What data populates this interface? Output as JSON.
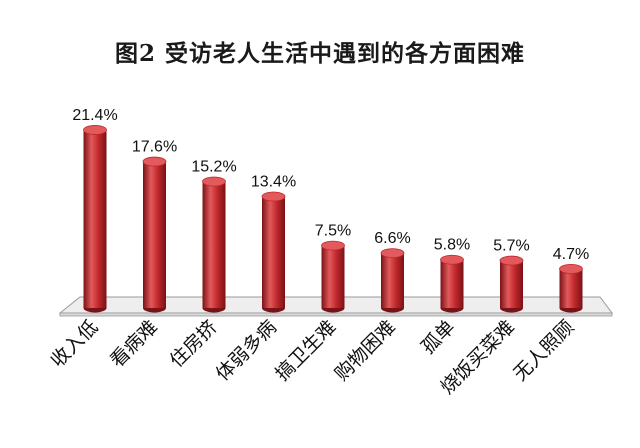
{
  "chart_data": {
    "type": "bar",
    "title": "图2  受访老人生活中遇到的各方面困难",
    "categories": [
      "收入低",
      "看病难",
      "住房挤",
      "体弱多病",
      "搞卫生难",
      "购物困难",
      "孤单",
      "烧饭买菜难",
      "无人照顾"
    ],
    "values": [
      21.4,
      17.6,
      15.2,
      13.4,
      7.5,
      6.6,
      5.8,
      5.7,
      4.7
    ],
    "value_labels": [
      "21.4%",
      "17.6%",
      "15.2%",
      "13.4%",
      "7.5%",
      "6.6%",
      "5.8%",
      "5.7%",
      "4.7%"
    ],
    "xlabel": "",
    "ylabel": "",
    "ylim": [
      0,
      25
    ],
    "grid": false,
    "legend": "none",
    "style": "3d-cylinder",
    "bar_color": "#c0282c",
    "bar_dark_color": "#7a1216",
    "bar_light_color": "#e25a5c",
    "floor_color": "#eeeeee"
  }
}
